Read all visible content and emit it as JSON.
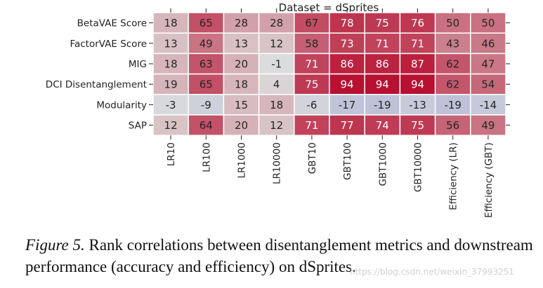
{
  "figure": {
    "caption_label": "Figure 5.",
    "caption_text": " Rank correlations between disentanglement metrics and downstream performance (accuracy and efficiency) on dSprites.",
    "watermark": "https://blog.csdn.net/weixin_37993251"
  },
  "chart_data": {
    "type": "heatmap",
    "title": "Dataset = dSprites",
    "rows": [
      "BetaVAE Score",
      "FactorVAE Score",
      "MIG",
      "DCI Disentanglement",
      "Modularity",
      "SAP"
    ],
    "columns": [
      "LR10",
      "LR100",
      "LR1000",
      "LR10000",
      "GBT10",
      "GBT100",
      "GBT1000",
      "GBT10000",
      "Efficiency (LR)",
      "Efficiency (GBT)"
    ],
    "values": [
      [
        18,
        65,
        28,
        28,
        67,
        78,
        75,
        76,
        50,
        50
      ],
      [
        13,
        49,
        13,
        12,
        58,
        73,
        71,
        71,
        43,
        46
      ],
      [
        18,
        63,
        20,
        -1,
        71,
        86,
        86,
        87,
        62,
        47
      ],
      [
        19,
        65,
        18,
        4,
        75,
        94,
        94,
        94,
        62,
        54
      ],
      [
        -3,
        -9,
        15,
        18,
        -6,
        -17,
        -19,
        -13,
        -19,
        -14
      ],
      [
        12,
        64,
        20,
        12,
        71,
        77,
        74,
        75,
        56,
        49
      ]
    ],
    "colormap": "diverging blue-white-red",
    "color_low": "#3b4cc0",
    "color_mid": "#dddddd",
    "color_high": "#b40426",
    "annotations": "cell values printed in each cell",
    "grid": false,
    "legend": "none"
  }
}
